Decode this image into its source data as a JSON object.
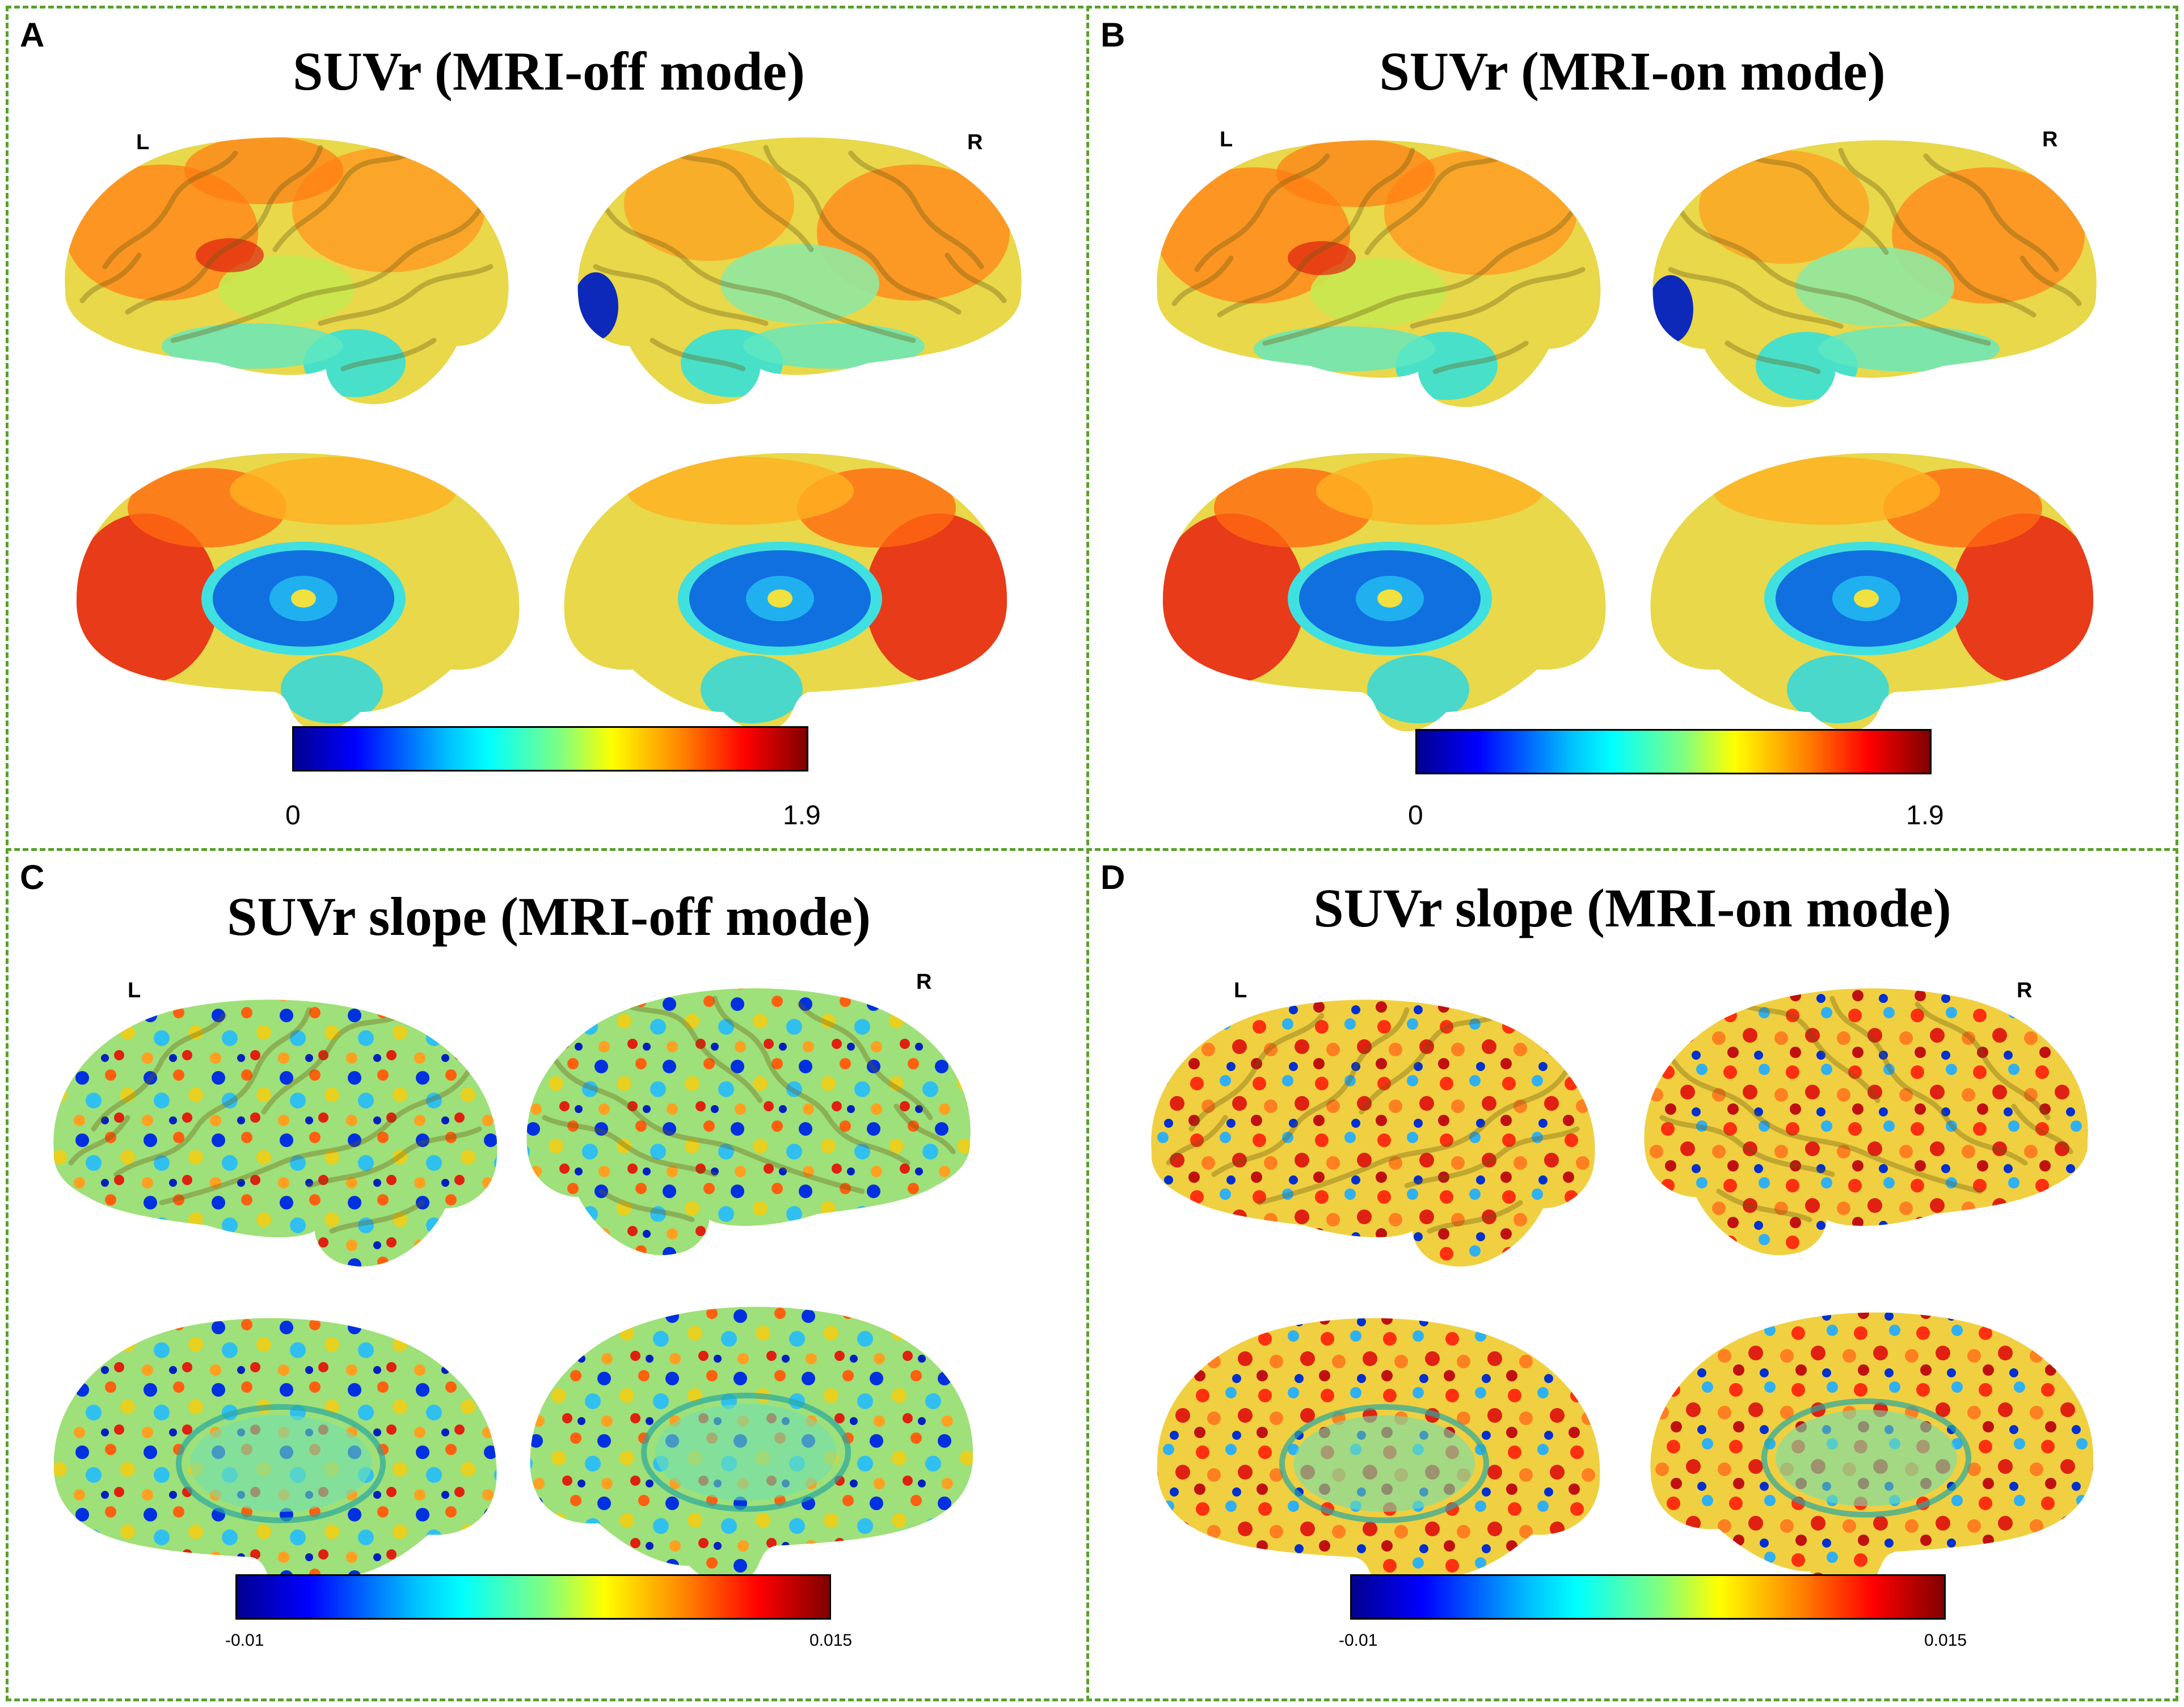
{
  "panels": {
    "A": {
      "label": "A",
      "title": "SUVr (MRI-off mode)",
      "left_hemisphere": "L",
      "right_hemisphere": "R",
      "colorbar": {
        "min": "0",
        "max": "1.9"
      }
    },
    "B": {
      "label": "B",
      "title": "SUVr (MRI-on mode)",
      "left_hemisphere": "L",
      "right_hemisphere": "R",
      "colorbar": {
        "min": "0",
        "max": "1.9"
      }
    },
    "C": {
      "label": "C",
      "title": "SUVr slope (MRI-off mode)",
      "left_hemisphere": "L",
      "right_hemisphere": "R",
      "colorbar": {
        "min": "-0.01",
        "max": "0.015"
      }
    },
    "D": {
      "label": "D",
      "title": "SUVr slope (MRI-on mode)",
      "left_hemisphere": "L",
      "right_hemisphere": "R",
      "colorbar": {
        "min": "-0.01",
        "max": "0.015"
      }
    }
  },
  "colormap": [
    "#00008f",
    "#0000ff",
    "#00c0ff",
    "#00ffff",
    "#80ff80",
    "#ffff00",
    "#ff8000",
    "#ff0000",
    "#800000"
  ],
  "border_color": "#5aa02c"
}
